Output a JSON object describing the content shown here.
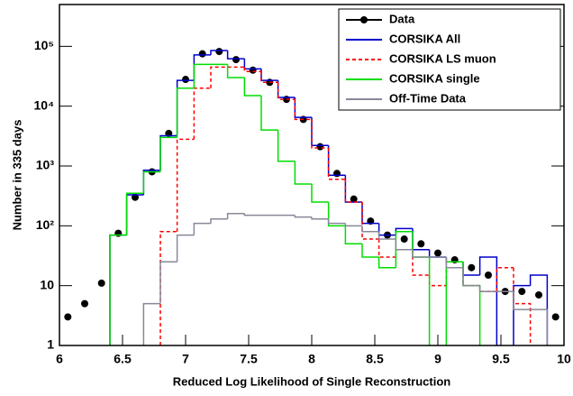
{
  "chart_data": {
    "type": "histogram",
    "ylabel": "Number in 335 days",
    "xlabel": "Reduced Log Likelihood of Single Reconstruction",
    "bins": [
      6,
      6.133,
      6.267,
      6.4,
      6.533,
      6.667,
      6.8,
      6.933,
      7.067,
      7.2,
      7.333,
      7.467,
      7.6,
      7.733,
      7.867,
      8,
      8.133,
      8.267,
      8.4,
      8.533,
      8.667,
      8.8,
      8.933,
      9.067,
      9.2,
      9.333,
      9.467,
      9.6,
      9.733,
      9.867,
      10
    ],
    "xlim": [
      6,
      10
    ],
    "xticks": [
      6,
      6.5,
      7,
      7.5,
      8,
      8.5,
      9,
      9.5,
      10
    ],
    "ylim": [
      1,
      500000
    ],
    "yscale": "log",
    "yticks": [
      1,
      10,
      {
        "value": 100,
        "label": "10²"
      },
      {
        "value": 1000,
        "label": "10³"
      },
      {
        "value": 10000,
        "label": "10⁴"
      },
      {
        "value": 100000,
        "label": "10⁵"
      }
    ],
    "legend": "upper right",
    "series": [
      {
        "name": "Data",
        "color": "#000000",
        "style": "markers",
        "values": [
          3,
          5,
          11,
          75,
          300,
          800,
          3500,
          28000,
          75000,
          82000,
          60000,
          40000,
          25000,
          13000,
          6000,
          2100,
          750,
          280,
          120,
          70,
          60,
          50,
          35,
          27,
          20,
          15,
          8,
          8,
          7,
          3
        ]
      },
      {
        "name": "CORSIKA All",
        "color": "#0000cc",
        "style": "solid",
        "values": [
          null,
          null,
          null,
          70,
          330,
          850,
          3200,
          27000,
          72000,
          85000,
          62000,
          42000,
          27000,
          14000,
          6500,
          2200,
          700,
          250,
          110,
          70,
          90,
          40,
          30,
          25,
          15,
          30,
          null,
          10,
          15,
          null
        ]
      },
      {
        "name": "CORSIKA LS muon",
        "color": "#ff0000",
        "style": "dashed",
        "values": [
          null,
          null,
          null,
          null,
          null,
          null,
          80,
          2800,
          20000,
          45000,
          45000,
          38000,
          25000,
          13000,
          6000,
          2000,
          600,
          250,
          60,
          30,
          40,
          15,
          10,
          20,
          10,
          8,
          20,
          5,
          null,
          null
        ]
      },
      {
        "name": "CORSIKA single",
        "color": "#00dd00",
        "style": "solid",
        "values": [
          null,
          null,
          null,
          70,
          350,
          800,
          3000,
          20000,
          50000,
          50000,
          30000,
          15000,
          4000,
          1200,
          500,
          250,
          100,
          50,
          30,
          20,
          80,
          30,
          null,
          25,
          10,
          null,
          null,
          null,
          null,
          null
        ]
      },
      {
        "name": "Off-Time Data",
        "color": "#888899",
        "style": "solid",
        "values": [
          null,
          null,
          null,
          null,
          null,
          5,
          25,
          70,
          110,
          130,
          160,
          150,
          150,
          150,
          140,
          130,
          110,
          100,
          80,
          60,
          40,
          30,
          30,
          20,
          10,
          8,
          8,
          4,
          4,
          null
        ]
      }
    ]
  }
}
